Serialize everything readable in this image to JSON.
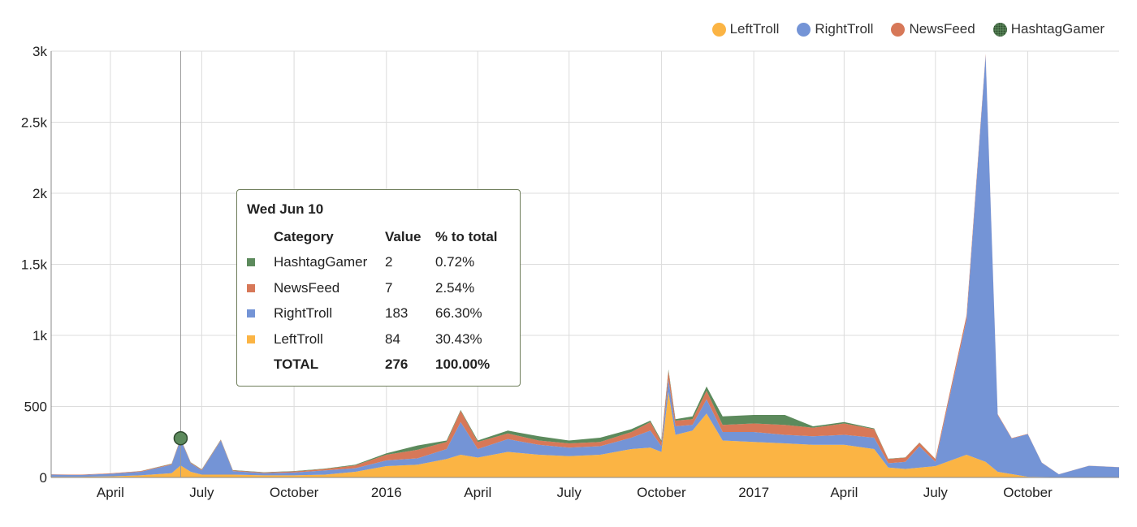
{
  "legend": [
    {
      "name": "LeftTroll",
      "color": "#fbb444"
    },
    {
      "name": "RightTroll",
      "color": "#7494d6"
    },
    {
      "name": "NewsFeed",
      "color": "#d77858"
    },
    {
      "name": "HashtagGamer",
      "color": "#5c8a5c"
    }
  ],
  "tooltip": {
    "title": "Wed Jun 10",
    "headers": [
      "Category",
      "Value",
      "% to total"
    ],
    "rows": [
      {
        "category": "HashtagGamer",
        "value": "2",
        "pct": "0.72%",
        "color": "#5c8a5c"
      },
      {
        "category": "NewsFeed",
        "value": "7",
        "pct": "2.54%",
        "color": "#d77858"
      },
      {
        "category": "RightTroll",
        "value": "183",
        "pct": "66.30%",
        "color": "#7494d6"
      },
      {
        "category": "LeftTroll",
        "value": "84",
        "pct": "30.43%",
        "color": "#fbb444"
      }
    ],
    "total": {
      "label": "TOTAL",
      "value": "276",
      "pct": "100.00%"
    }
  },
  "chart_data": {
    "type": "area",
    "stacked": true,
    "title": "",
    "xlabel": "",
    "ylabel": "",
    "ylim": [
      0,
      3000
    ],
    "y_ticks": [
      "0",
      "500",
      "1k",
      "1.5k",
      "2k",
      "2.5k",
      "3k"
    ],
    "y_tick_values": [
      0,
      500,
      1000,
      1500,
      2000,
      2500,
      3000
    ],
    "x_range": [
      "2015-02-01",
      "2017-12-31"
    ],
    "x_ticks": [
      {
        "label": "April",
        "date": "2015-04-01"
      },
      {
        "label": "July",
        "date": "2015-07-01"
      },
      {
        "label": "October",
        "date": "2015-10-01"
      },
      {
        "label": "2016",
        "date": "2016-01-01"
      },
      {
        "label": "April",
        "date": "2016-04-01"
      },
      {
        "label": "July",
        "date": "2016-07-01"
      },
      {
        "label": "October",
        "date": "2016-10-01"
      },
      {
        "label": "2017",
        "date": "2017-01-01"
      },
      {
        "label": "April",
        "date": "2017-04-01"
      },
      {
        "label": "July",
        "date": "2017-07-01"
      },
      {
        "label": "October",
        "date": "2017-10-01"
      }
    ],
    "grid": true,
    "legend_position": "top-right",
    "hover": {
      "date": "2015-06-10",
      "total": 276,
      "series": "HashtagGamer"
    },
    "series": [
      {
        "name": "LeftTroll",
        "color": "#fbb444",
        "points": [
          [
            "2015-02-01",
            5
          ],
          [
            "2015-03-01",
            5
          ],
          [
            "2015-04-01",
            8
          ],
          [
            "2015-05-01",
            15
          ],
          [
            "2015-06-01",
            30
          ],
          [
            "2015-06-10",
            84
          ],
          [
            "2015-06-20",
            40
          ],
          [
            "2015-07-01",
            20
          ],
          [
            "2015-08-01",
            20
          ],
          [
            "2015-09-01",
            15
          ],
          [
            "2015-10-01",
            15
          ],
          [
            "2015-11-01",
            20
          ],
          [
            "2015-12-01",
            40
          ],
          [
            "2016-01-01",
            80
          ],
          [
            "2016-02-01",
            90
          ],
          [
            "2016-03-01",
            130
          ],
          [
            "2016-03-15",
            160
          ],
          [
            "2016-04-01",
            140
          ],
          [
            "2016-05-01",
            180
          ],
          [
            "2016-06-01",
            160
          ],
          [
            "2016-07-01",
            150
          ],
          [
            "2016-08-01",
            160
          ],
          [
            "2016-09-01",
            200
          ],
          [
            "2016-09-20",
            210
          ],
          [
            "2016-10-01",
            180
          ],
          [
            "2016-10-08",
            600
          ],
          [
            "2016-10-15",
            300
          ],
          [
            "2016-11-01",
            330
          ],
          [
            "2016-11-15",
            450
          ],
          [
            "2016-12-01",
            260
          ],
          [
            "2017-01-01",
            250
          ],
          [
            "2017-02-01",
            240
          ],
          [
            "2017-03-01",
            230
          ],
          [
            "2017-04-01",
            230
          ],
          [
            "2017-05-01",
            200
          ],
          [
            "2017-05-15",
            70
          ],
          [
            "2017-06-01",
            60
          ],
          [
            "2017-07-01",
            80
          ],
          [
            "2017-08-01",
            160
          ],
          [
            "2017-08-20",
            110
          ],
          [
            "2017-09-01",
            40
          ],
          [
            "2017-10-01",
            5
          ],
          [
            "2017-11-01",
            2
          ],
          [
            "2017-12-31",
            2
          ]
        ]
      },
      {
        "name": "RightTroll",
        "color": "#7494d6",
        "points": [
          [
            "2015-02-01",
            15
          ],
          [
            "2015-03-01",
            12
          ],
          [
            "2015-04-01",
            18
          ],
          [
            "2015-05-01",
            25
          ],
          [
            "2015-06-01",
            60
          ],
          [
            "2015-06-10",
            183
          ],
          [
            "2015-06-20",
            60
          ],
          [
            "2015-07-01",
            30
          ],
          [
            "2015-07-20",
            240
          ],
          [
            "2015-08-01",
            25
          ],
          [
            "2015-09-01",
            15
          ],
          [
            "2015-10-01",
            20
          ],
          [
            "2015-11-01",
            30
          ],
          [
            "2015-12-01",
            25
          ],
          [
            "2016-01-01",
            40
          ],
          [
            "2016-02-01",
            45
          ],
          [
            "2016-03-01",
            70
          ],
          [
            "2016-03-15",
            230
          ],
          [
            "2016-04-01",
            60
          ],
          [
            "2016-05-01",
            90
          ],
          [
            "2016-06-01",
            70
          ],
          [
            "2016-07-01",
            60
          ],
          [
            "2016-08-01",
            60
          ],
          [
            "2016-09-01",
            80
          ],
          [
            "2016-09-20",
            120
          ],
          [
            "2016-10-01",
            40
          ],
          [
            "2016-10-08",
            90
          ],
          [
            "2016-10-15",
            60
          ],
          [
            "2016-11-01",
            40
          ],
          [
            "2016-11-15",
            100
          ],
          [
            "2016-12-01",
            60
          ],
          [
            "2017-01-01",
            70
          ],
          [
            "2017-02-01",
            60
          ],
          [
            "2017-03-01",
            60
          ],
          [
            "2017-04-01",
            70
          ],
          [
            "2017-05-01",
            80
          ],
          [
            "2017-05-15",
            30
          ],
          [
            "2017-06-01",
            50
          ],
          [
            "2017-06-15",
            150
          ],
          [
            "2017-07-01",
            30
          ],
          [
            "2017-08-01",
            950
          ],
          [
            "2017-08-20",
            2860
          ],
          [
            "2017-09-01",
            400
          ],
          [
            "2017-09-15",
            250
          ],
          [
            "2017-10-01",
            300
          ],
          [
            "2017-10-15",
            100
          ],
          [
            "2017-11-01",
            20
          ],
          [
            "2017-12-01",
            80
          ],
          [
            "2017-12-31",
            70
          ]
        ]
      },
      {
        "name": "NewsFeed",
        "color": "#d77858",
        "points": [
          [
            "2015-02-01",
            2
          ],
          [
            "2015-03-01",
            3
          ],
          [
            "2015-04-01",
            3
          ],
          [
            "2015-05-01",
            4
          ],
          [
            "2015-06-01",
            5
          ],
          [
            "2015-06-10",
            7
          ],
          [
            "2015-06-20",
            5
          ],
          [
            "2015-07-01",
            5
          ],
          [
            "2015-08-01",
            5
          ],
          [
            "2015-09-01",
            5
          ],
          [
            "2015-10-01",
            8
          ],
          [
            "2015-11-01",
            10
          ],
          [
            "2015-12-01",
            20
          ],
          [
            "2016-01-01",
            40
          ],
          [
            "2016-02-01",
            60
          ],
          [
            "2016-03-01",
            50
          ],
          [
            "2016-03-15",
            80
          ],
          [
            "2016-04-01",
            50
          ],
          [
            "2016-05-01",
            40
          ],
          [
            "2016-06-01",
            30
          ],
          [
            "2016-07-01",
            30
          ],
          [
            "2016-08-01",
            30
          ],
          [
            "2016-09-01",
            40
          ],
          [
            "2016-09-20",
            60
          ],
          [
            "2016-10-01",
            30
          ],
          [
            "2016-10-08",
            60
          ],
          [
            "2016-10-15",
            40
          ],
          [
            "2016-11-01",
            40
          ],
          [
            "2016-11-15",
            60
          ],
          [
            "2016-12-01",
            50
          ],
          [
            "2017-01-01",
            60
          ],
          [
            "2017-02-01",
            70
          ],
          [
            "2017-03-01",
            60
          ],
          [
            "2017-04-01",
            80
          ],
          [
            "2017-05-01",
            60
          ],
          [
            "2017-05-15",
            30
          ],
          [
            "2017-06-01",
            30
          ],
          [
            "2017-07-01",
            20
          ],
          [
            "2017-08-01",
            30
          ],
          [
            "2017-08-20",
            10
          ],
          [
            "2017-09-01",
            5
          ],
          [
            "2017-10-01",
            2
          ],
          [
            "2017-11-01",
            1
          ],
          [
            "2017-12-31",
            1
          ]
        ]
      },
      {
        "name": "HashtagGamer",
        "color": "#5c8a5c",
        "points": [
          [
            "2015-02-01",
            0
          ],
          [
            "2015-03-01",
            0
          ],
          [
            "2015-04-01",
            0
          ],
          [
            "2015-05-01",
            1
          ],
          [
            "2015-06-01",
            2
          ],
          [
            "2015-06-10",
            2
          ],
          [
            "2015-06-20",
            2
          ],
          [
            "2015-07-01",
            2
          ],
          [
            "2015-08-01",
            2
          ],
          [
            "2015-09-01",
            2
          ],
          [
            "2015-10-01",
            2
          ],
          [
            "2015-11-01",
            3
          ],
          [
            "2015-12-01",
            5
          ],
          [
            "2016-01-01",
            10
          ],
          [
            "2016-02-01",
            30
          ],
          [
            "2016-03-01",
            10
          ],
          [
            "2016-03-15",
            5
          ],
          [
            "2016-04-01",
            10
          ],
          [
            "2016-05-01",
            20
          ],
          [
            "2016-06-01",
            30
          ],
          [
            "2016-07-01",
            20
          ],
          [
            "2016-08-01",
            30
          ],
          [
            "2016-09-01",
            20
          ],
          [
            "2016-09-20",
            10
          ],
          [
            "2016-10-01",
            10
          ],
          [
            "2016-10-08",
            10
          ],
          [
            "2016-10-15",
            10
          ],
          [
            "2016-11-01",
            20
          ],
          [
            "2016-11-15",
            30
          ],
          [
            "2016-12-01",
            60
          ],
          [
            "2017-01-01",
            60
          ],
          [
            "2017-02-01",
            70
          ],
          [
            "2017-03-01",
            10
          ],
          [
            "2017-04-01",
            10
          ],
          [
            "2017-05-01",
            5
          ],
          [
            "2017-05-15",
            2
          ],
          [
            "2017-06-01",
            1
          ],
          [
            "2017-07-01",
            1
          ],
          [
            "2017-08-01",
            0
          ],
          [
            "2017-08-20",
            0
          ],
          [
            "2017-09-01",
            0
          ],
          [
            "2017-10-01",
            0
          ],
          [
            "2017-11-01",
            0
          ],
          [
            "2017-12-31",
            0
          ]
        ]
      }
    ]
  }
}
